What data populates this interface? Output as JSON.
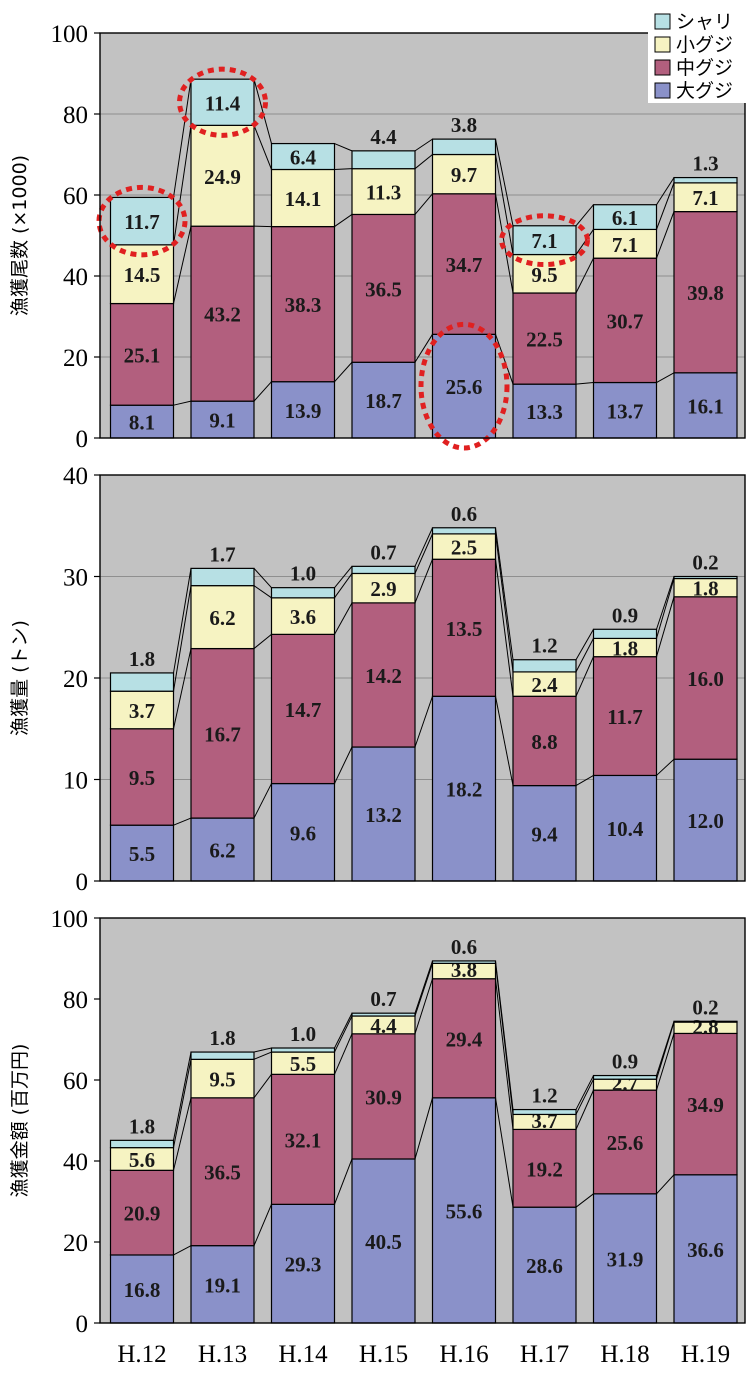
{
  "categories": [
    "H.12",
    "H.13",
    "H.14",
    "H.15",
    "H.16",
    "H.17",
    "H.18",
    "H.19"
  ],
  "legend": [
    {
      "label": "シャリ",
      "color": "#b7e0e4"
    },
    {
      "label": "小グジ",
      "color": "#f6f3c2"
    },
    {
      "label": "中グジ",
      "color": "#b25f7e"
    },
    {
      "label": "大グジ",
      "color": "#8a91c9"
    }
  ],
  "colors": {
    "plot_bg": "#c2c2c2",
    "grid": "#8f8f8f",
    "highlight": "#e02020",
    "sizes": [
      "#8a91c9",
      "#b25f7e",
      "#f6f3c2",
      "#b7e0e4"
    ]
  },
  "chart_data": [
    {
      "type": "bar",
      "stacked": true,
      "ylabel": "漁獲尾数 (×1000)",
      "ylim": [
        0,
        100
      ],
      "yticks": [
        "0",
        "20",
        "40",
        "60",
        "80",
        "100"
      ],
      "grid": true,
      "legend_position": "top-right",
      "series": [
        {
          "name": "大グジ",
          "values": [
            8.1,
            9.1,
            13.9,
            18.7,
            25.6,
            13.3,
            13.7,
            16.1
          ],
          "labels": [
            "8.1",
            "9.1",
            "13.9",
            "18.7",
            "25.6",
            "13.3",
            "13.7",
            "16.1"
          ]
        },
        {
          "name": "中グジ",
          "values": [
            25.1,
            43.2,
            38.3,
            36.5,
            34.7,
            22.5,
            30.7,
            39.8
          ],
          "labels": [
            "25.1",
            "43.2",
            "38.3",
            "36.5",
            "34.7",
            "22.5",
            "30.7",
            "39.8"
          ]
        },
        {
          "name": "小グジ",
          "values": [
            14.5,
            24.9,
            14.1,
            11.3,
            9.7,
            9.5,
            7.1,
            7.1
          ],
          "labels": [
            "14.5",
            "24.9",
            "14.1",
            "11.3",
            "9.7",
            "9.5",
            "7.1",
            "7.1"
          ]
        },
        {
          "name": "シャリ",
          "values": [
            11.7,
            11.4,
            6.4,
            4.4,
            3.8,
            7.1,
            6.1,
            1.3
          ],
          "labels": [
            "11.7",
            "11.4",
            "6.4",
            "4.4",
            "3.8",
            "7.1",
            "6.1",
            "1.3"
          ]
        }
      ],
      "highlighted": [
        {
          "category": "H.12",
          "series": "シャリ"
        },
        {
          "category": "H.13",
          "series": "シャリ"
        },
        {
          "category": "H.16",
          "series": "大グジ"
        },
        {
          "category": "H.17",
          "series": "シャリ"
        }
      ]
    },
    {
      "type": "bar",
      "stacked": true,
      "ylabel": "漁獲量 (トン)",
      "ylim": [
        0,
        40
      ],
      "yticks": [
        "0",
        "10",
        "20",
        "30",
        "40"
      ],
      "grid": true,
      "series": [
        {
          "name": "大グジ",
          "values": [
            5.5,
            6.2,
            9.6,
            13.2,
            18.2,
            9.4,
            10.4,
            12.0
          ],
          "labels": [
            "5.5",
            "6.2",
            "9.6",
            "13.2",
            "18.2",
            "9.4",
            "10.4",
            "12.0"
          ]
        },
        {
          "name": "中グジ",
          "values": [
            9.5,
            16.7,
            14.7,
            14.2,
            13.5,
            8.8,
            11.7,
            16.0
          ],
          "labels": [
            "9.5",
            "16.7",
            "14.7",
            "14.2",
            "13.5",
            "8.8",
            "11.7",
            "16.0"
          ]
        },
        {
          "name": "小グジ",
          "values": [
            3.7,
            6.2,
            3.6,
            2.9,
            2.5,
            2.4,
            1.8,
            1.8
          ],
          "labels": [
            "3.7",
            "6.2",
            "3.6",
            "2.9",
            "2.5",
            "2.4",
            "1.8",
            "1.8"
          ]
        },
        {
          "name": "シャリ",
          "values": [
            1.8,
            1.7,
            1.0,
            0.7,
            0.6,
            1.2,
            0.9,
            0.2
          ],
          "labels": [
            "1.8",
            "1.7",
            "1.0",
            "0.7",
            "0.6",
            "1.2",
            "0.9",
            "0.2"
          ]
        }
      ]
    },
    {
      "type": "bar",
      "stacked": true,
      "ylabel": "漁獲金額 (百万円)",
      "ylim": [
        0,
        100
      ],
      "yticks": [
        "0",
        "20",
        "40",
        "60",
        "80",
        "100"
      ],
      "grid": false,
      "series": [
        {
          "name": "大グジ",
          "values": [
            16.8,
            19.1,
            29.3,
            40.5,
            55.6,
            28.6,
            31.9,
            36.6
          ],
          "labels": [
            "16.8",
            "19.1",
            "29.3",
            "40.5",
            "55.6",
            "28.6",
            "31.9",
            "36.6"
          ]
        },
        {
          "name": "中グジ",
          "values": [
            20.9,
            36.5,
            32.1,
            30.9,
            29.4,
            19.2,
            25.6,
            34.9
          ],
          "labels": [
            "20.9",
            "36.5",
            "32.1",
            "30.9",
            "29.4",
            "19.2",
            "25.6",
            "34.9"
          ]
        },
        {
          "name": "小グジ",
          "values": [
            5.6,
            9.5,
            5.5,
            4.4,
            3.8,
            3.7,
            2.7,
            2.8
          ],
          "labels": [
            "5.6",
            "9.5",
            "5.5",
            "4.4",
            "3.8",
            "3.7",
            "2.7",
            "2.8"
          ]
        },
        {
          "name": "シャリ",
          "values": [
            1.8,
            1.8,
            1.0,
            0.7,
            0.6,
            1.2,
            0.9,
            0.2
          ],
          "labels": [
            "1.8",
            "1.8",
            "1.0",
            "0.7",
            "0.6",
            "1.2",
            "0.9",
            "0.2"
          ]
        }
      ]
    }
  ]
}
